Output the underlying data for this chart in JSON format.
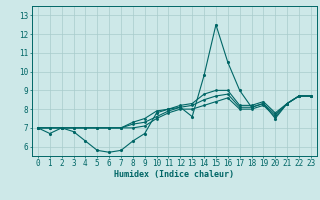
{
  "title": "",
  "xlabel": "Humidex (Indice chaleur)",
  "ylabel": "",
  "bg_color": "#cde8e8",
  "line_color": "#006666",
  "grid_color": "#a8cccc",
  "xlim": [
    -0.5,
    23.5
  ],
  "ylim": [
    5.5,
    13.5
  ],
  "yticks": [
    6,
    7,
    8,
    9,
    10,
    11,
    12,
    13
  ],
  "xticks": [
    0,
    1,
    2,
    3,
    4,
    5,
    6,
    7,
    8,
    9,
    10,
    11,
    12,
    13,
    14,
    15,
    16,
    17,
    18,
    19,
    20,
    21,
    22,
    23
  ],
  "series": [
    [
      7.0,
      6.7,
      7.0,
      6.8,
      6.3,
      5.8,
      5.7,
      5.8,
      6.3,
      6.7,
      7.8,
      8.0,
      8.1,
      7.6,
      9.8,
      12.5,
      10.5,
      9.0,
      8.1,
      8.3,
      7.5,
      8.3,
      8.7,
      8.7
    ],
    [
      7.0,
      7.0,
      7.0,
      7.0,
      7.0,
      7.0,
      7.0,
      7.0,
      7.0,
      7.1,
      7.5,
      7.8,
      8.0,
      8.0,
      8.2,
      8.4,
      8.6,
      8.0,
      8.0,
      8.2,
      7.6,
      8.3,
      8.7,
      8.7
    ],
    [
      7.0,
      7.0,
      7.0,
      7.0,
      7.0,
      7.0,
      7.0,
      7.0,
      7.2,
      7.3,
      7.6,
      7.9,
      8.1,
      8.2,
      8.5,
      8.7,
      8.8,
      8.1,
      8.1,
      8.3,
      7.7,
      8.3,
      8.7,
      8.7
    ],
    [
      7.0,
      7.0,
      7.0,
      7.0,
      7.0,
      7.0,
      7.0,
      7.0,
      7.3,
      7.5,
      7.9,
      8.0,
      8.2,
      8.3,
      8.8,
      9.0,
      9.0,
      8.2,
      8.2,
      8.4,
      7.8,
      8.3,
      8.7,
      8.7
    ]
  ],
  "markers": [
    true,
    true,
    true,
    true
  ],
  "xlabel_fontsize": 6.0,
  "tick_fontsize": 5.5
}
